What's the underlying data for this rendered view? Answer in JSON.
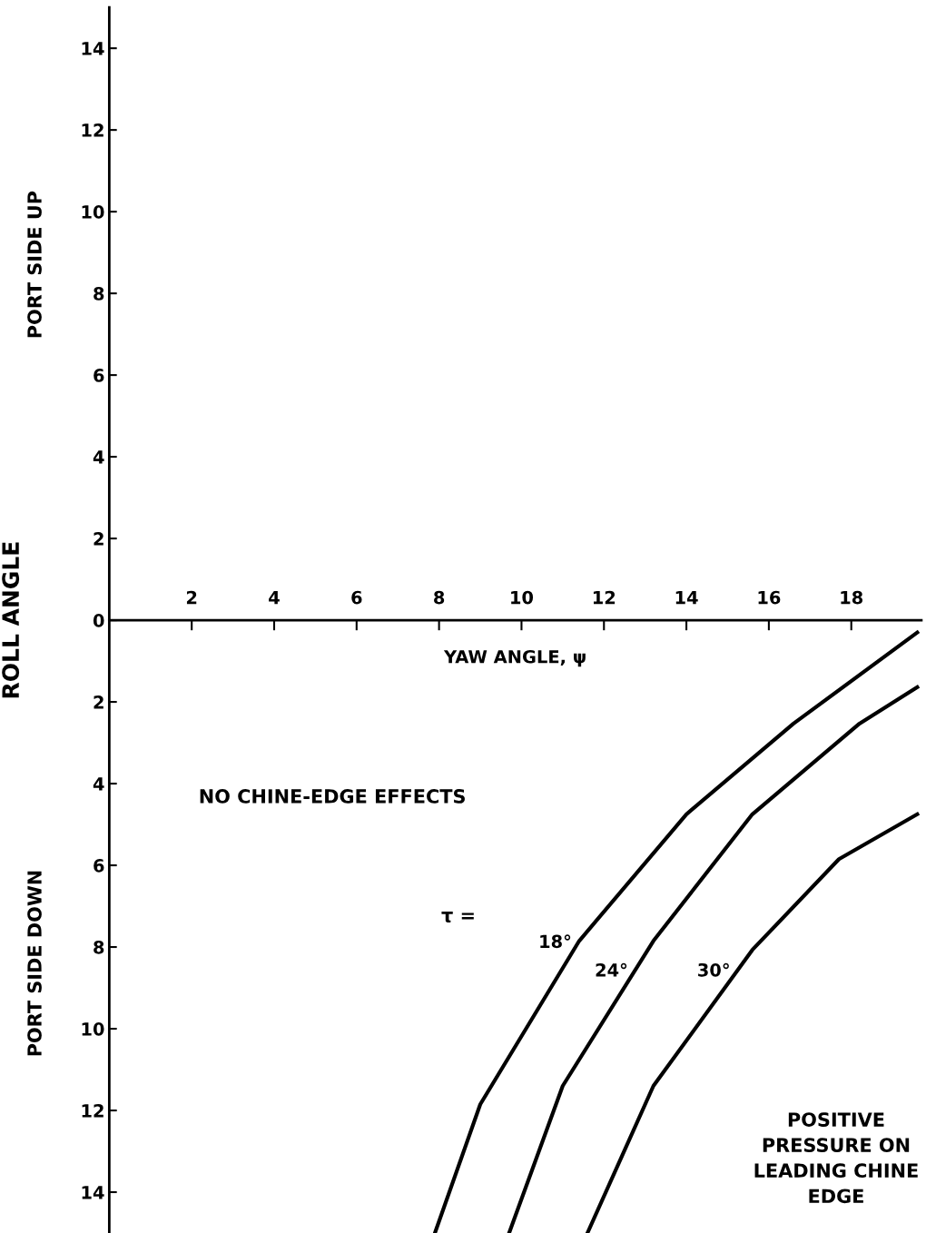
{
  "chart_data": {
    "type": "line",
    "xlabel": "YAW ANGLE, ψ",
    "ylabel": "ROLL ANGLE",
    "xlim": [
      0,
      19.7
    ],
    "ylim": [
      -15,
      15
    ],
    "xticks": [
      2,
      4,
      6,
      8,
      10,
      12,
      14,
      16,
      18
    ],
    "yticks": [
      {
        "value": -14,
        "label": "14"
      },
      {
        "value": -12,
        "label": "12"
      },
      {
        "value": -10,
        "label": "10"
      },
      {
        "value": -8,
        "label": "8"
      },
      {
        "value": -6,
        "label": "6"
      },
      {
        "value": -4,
        "label": "4"
      },
      {
        "value": -2,
        "label": "2"
      },
      0,
      {
        "value": 2,
        "label": "2"
      },
      {
        "value": 4,
        "label": "4"
      },
      {
        "value": 6,
        "label": "6"
      },
      {
        "value": 8,
        "label": "8"
      },
      {
        "value": 10,
        "label": "10"
      },
      {
        "value": 12,
        "label": "12"
      },
      {
        "value": 14,
        "label": "14"
      }
    ],
    "grid": false,
    "legend": false,
    "marker": "none",
    "line_style": "solid",
    "series": [
      {
        "name": "18°",
        "color": "#000000",
        "x": [
          7.9,
          9.0,
          11.4,
          14.0,
          16.6,
          19.6
        ],
        "values": [
          -15,
          -11.85,
          -7.85,
          -4.75,
          -2.53,
          -0.3
        ]
      },
      {
        "name": "24°",
        "color": "#000000",
        "x": [
          9.7,
          11.0,
          13.2,
          15.6,
          18.2,
          19.6
        ],
        "values": [
          -15,
          -11.4,
          -7.85,
          -4.75,
          -2.53,
          -1.64
        ]
      },
      {
        "name": "30°",
        "color": "#000000",
        "x": [
          11.6,
          13.2,
          15.6,
          17.7,
          19.6
        ],
        "values": [
          -15,
          -11.4,
          -8.07,
          -5.85,
          -4.75
        ]
      }
    ],
    "annotations": [
      "PORT SIDE UP",
      "PORT SIDE DOWN",
      "NO CHINE-EDGE EFFECTS",
      "τ =",
      "POSITIVE\nPRESSURE ON\nLEADING CHINE\nEDGE"
    ]
  }
}
